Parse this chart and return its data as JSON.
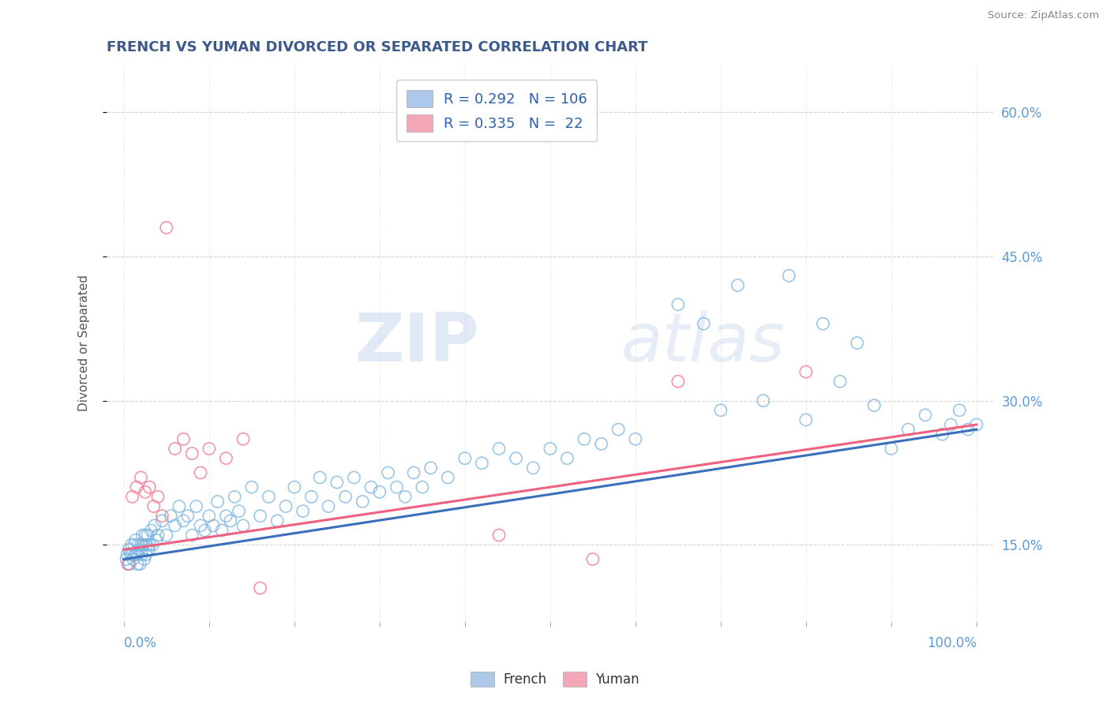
{
  "title": "FRENCH VS YUMAN DIVORCED OR SEPARATED CORRELATION CHART",
  "source": "Source: ZipAtlas.com",
  "ylabel": "Divorced or Separated",
  "legend_french": {
    "R": 0.292,
    "N": 106,
    "color": "#adc8e8"
  },
  "legend_yuman": {
    "R": 0.335,
    "N": 22,
    "color": "#f4a7b9"
  },
  "french_color": "#7ab4e0",
  "yuman_color": "#f4849a",
  "trend_french_color": "#3a6fbc",
  "trend_yuman_color": "#f06080",
  "watermark_zip": "ZIP",
  "watermark_atlas": "atlas",
  "title_color": "#3c5a8c",
  "axis_label_color": "#5b9bd5",
  "source_color": "#888888",
  "french_x": [
    0.3,
    0.4,
    0.5,
    0.6,
    0.7,
    0.8,
    0.9,
    1.0,
    1.1,
    1.2,
    1.3,
    1.4,
    1.5,
    1.6,
    1.7,
    1.8,
    1.9,
    2.0,
    2.1,
    2.2,
    2.3,
    2.4,
    2.5,
    2.6,
    2.7,
    2.8,
    2.9,
    3.0,
    3.2,
    3.4,
    3.6,
    3.8,
    4.0,
    4.5,
    5.0,
    5.5,
    6.0,
    6.5,
    7.0,
    7.5,
    8.0,
    8.5,
    9.0,
    9.5,
    10.0,
    10.5,
    11.0,
    11.5,
    12.0,
    12.5,
    13.0,
    13.5,
    14.0,
    15.0,
    16.0,
    17.0,
    18.0,
    19.0,
    20.0,
    21.0,
    22.0,
    23.0,
    24.0,
    25.0,
    26.0,
    27.0,
    28.0,
    29.0,
    30.0,
    31.0,
    32.0,
    33.0,
    34.0,
    35.0,
    36.0,
    38.0,
    40.0,
    42.0,
    44.0,
    46.0,
    48.0,
    50.0,
    52.0,
    54.0,
    56.0,
    58.0,
    60.0,
    65.0,
    68.0,
    70.0,
    72.0,
    75.0,
    78.0,
    80.0,
    82.0,
    84.0,
    86.0,
    88.0,
    90.0,
    92.0,
    94.0,
    96.0,
    97.0,
    98.0,
    99.0,
    100.0
  ],
  "french_y": [
    13.5,
    14.0,
    13.0,
    14.5,
    13.0,
    14.0,
    15.0,
    14.0,
    13.5,
    15.0,
    14.0,
    15.5,
    14.0,
    13.0,
    15.0,
    14.5,
    13.0,
    15.0,
    14.0,
    16.0,
    15.0,
    13.5,
    16.0,
    14.0,
    15.0,
    16.0,
    14.5,
    15.0,
    16.5,
    15.0,
    17.0,
    15.5,
    16.0,
    17.5,
    16.0,
    18.0,
    17.0,
    19.0,
    17.5,
    18.0,
    16.0,
    19.0,
    17.0,
    16.5,
    18.0,
    17.0,
    19.5,
    16.5,
    18.0,
    17.5,
    20.0,
    18.5,
    17.0,
    21.0,
    18.0,
    20.0,
    17.5,
    19.0,
    21.0,
    18.5,
    20.0,
    22.0,
    19.0,
    21.5,
    20.0,
    22.0,
    19.5,
    21.0,
    20.5,
    22.5,
    21.0,
    20.0,
    22.5,
    21.0,
    23.0,
    22.0,
    24.0,
    23.5,
    25.0,
    24.0,
    23.0,
    25.0,
    24.0,
    26.0,
    25.5,
    27.0,
    26.0,
    40.0,
    38.0,
    29.0,
    42.0,
    30.0,
    43.0,
    28.0,
    38.0,
    32.0,
    36.0,
    29.5,
    25.0,
    27.0,
    28.5,
    26.5,
    27.5,
    29.0,
    27.0,
    27.5
  ],
  "yuman_x": [
    0.5,
    1.0,
    1.5,
    2.0,
    2.5,
    3.0,
    3.5,
    4.0,
    4.5,
    5.0,
    6.0,
    7.0,
    8.0,
    9.0,
    10.0,
    12.0,
    14.0,
    16.0,
    44.0,
    55.0,
    65.0,
    80.0
  ],
  "yuman_y": [
    13.0,
    20.0,
    21.0,
    22.0,
    20.5,
    21.0,
    19.0,
    20.0,
    18.0,
    48.0,
    25.0,
    26.0,
    24.5,
    22.5,
    25.0,
    24.0,
    26.0,
    10.5,
    16.0,
    13.5,
    32.0,
    33.0
  ],
  "trend_french_x0": 0,
  "trend_french_y0": 13.5,
  "trend_french_x1": 100,
  "trend_french_y1": 27.0,
  "trend_yuman_x0": 0,
  "trend_yuman_y0": 14.5,
  "trend_yuman_x1": 100,
  "trend_yuman_y1": 27.5,
  "xlim": [
    -2,
    102
  ],
  "ylim": [
    7,
    65
  ],
  "yticks": [
    15.0,
    30.0,
    45.0,
    60.0
  ],
  "xtick_positions": [
    0,
    10,
    20,
    30,
    40,
    50,
    60,
    70,
    80,
    90,
    100
  ]
}
